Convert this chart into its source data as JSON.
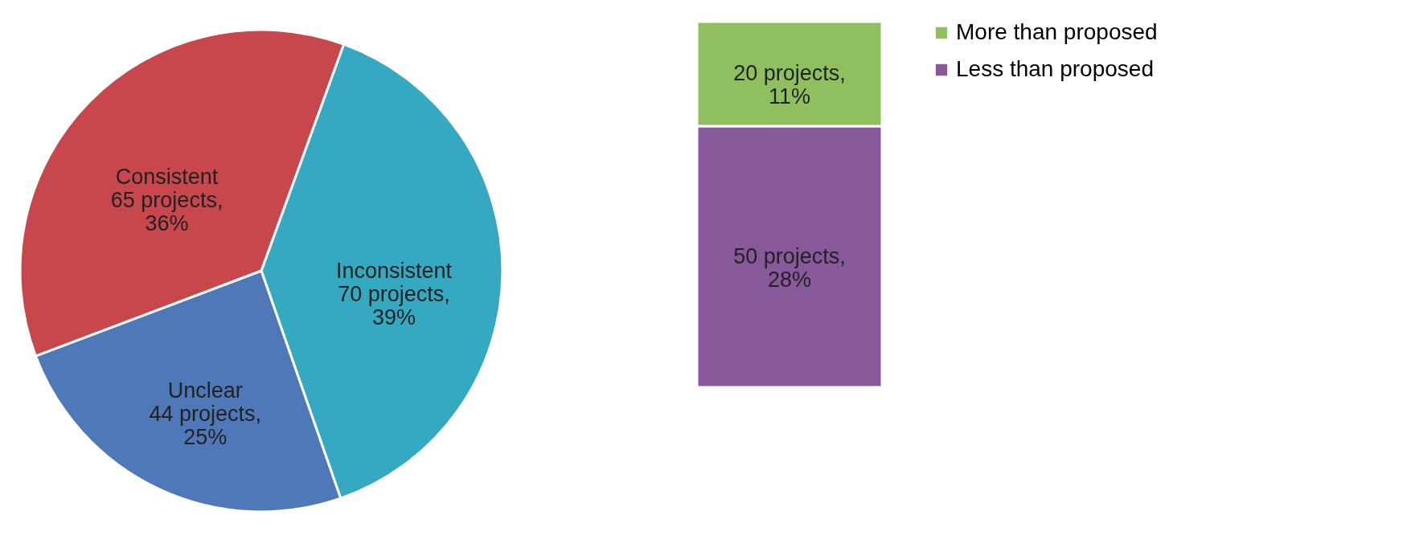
{
  "chart_data": [
    {
      "type": "pie",
      "categories": [
        "Inconsistent",
        "Unclear",
        "Consistent"
      ],
      "values": [
        70,
        44,
        65
      ],
      "colors": [
        "#35a9c2",
        "#4f78b8",
        "#c8474d"
      ],
      "value_labels": [
        "70 projects, 39%",
        "44 projects, 25%",
        "65 projects, 36%"
      ]
    },
    {
      "type": "bar",
      "stacked": true,
      "categories": [
        null
      ],
      "legend": "right",
      "series": [
        {
          "name": "Less than proposed",
          "color": "#87599a",
          "values": [
            50
          ],
          "value_labels": [
            "50 projects, 28%"
          ]
        },
        {
          "name": "More than proposed",
          "color": "#8fbf5f",
          "values": [
            20
          ],
          "value_labels": [
            "20 projects, 11%"
          ]
        }
      ]
    }
  ]
}
